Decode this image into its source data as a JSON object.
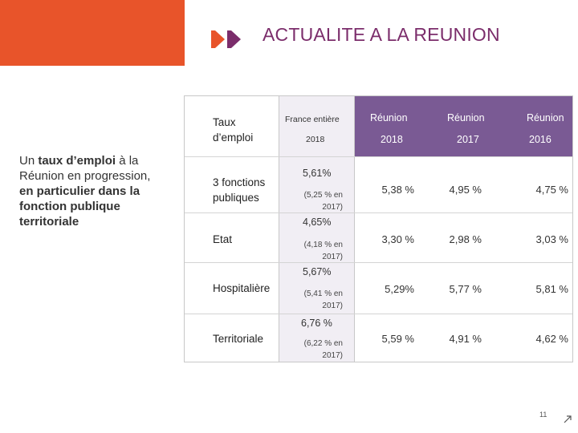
{
  "header": {
    "title": "ACTUALITE A LA REUNION",
    "accent_color": "#e8542a",
    "title_color": "#7b2d6b"
  },
  "left_text": {
    "p1": "Un ",
    "p2": "taux d’emploi",
    "p3": " à la Réunion en progression, ",
    "p4": "en particulier dans la fonction publique territoriale"
  },
  "table": {
    "header": {
      "label_line1": "Taux",
      "label_line2": "d’emploi",
      "france_line1": "France entière",
      "france_line2": "2018",
      "cols": [
        {
          "line1": "Réunion",
          "line2": "2018"
        },
        {
          "line1": "Réunion",
          "line2": "2017"
        },
        {
          "line1": "Réunion",
          "line2": "2016"
        }
      ],
      "header_color": "#7a5a94"
    },
    "rows": [
      {
        "label_line1": "3 fonctions",
        "label_line2": "publiques",
        "france_main": "5,61%",
        "france_sub1": "(5,25 % en",
        "france_sub2": "2017)",
        "reunion_2018": "5,38 %",
        "reunion_2017": "4,95 %",
        "reunion_2016": "4,75 %"
      },
      {
        "label_line1": "Etat",
        "france_main": "4,65%",
        "france_sub1": "(4,18 % en",
        "france_sub2": "2017)",
        "reunion_2018": "3,30 %",
        "reunion_2017": "2,98 %",
        "reunion_2016": "3,03 %"
      },
      {
        "label_line1": "Hospitalière",
        "france_main": "5,67%",
        "france_sub1": "(5,41 % en",
        "france_sub2": "2017)",
        "reunion_2018": "5,29%",
        "reunion_2017": "5,77 %",
        "reunion_2016": "5,81 %"
      },
      {
        "label_line1": "Territoriale",
        "france_main": "6,76 %",
        "france_sub1": "(6,22 % en",
        "france_sub2": "2017)",
        "reunion_2018": "5,59 %",
        "reunion_2017": "4,91 %",
        "reunion_2016": "4,62 %"
      }
    ]
  },
  "footer": {
    "page_number": "11",
    "nav_icon": "arrow-icon"
  }
}
